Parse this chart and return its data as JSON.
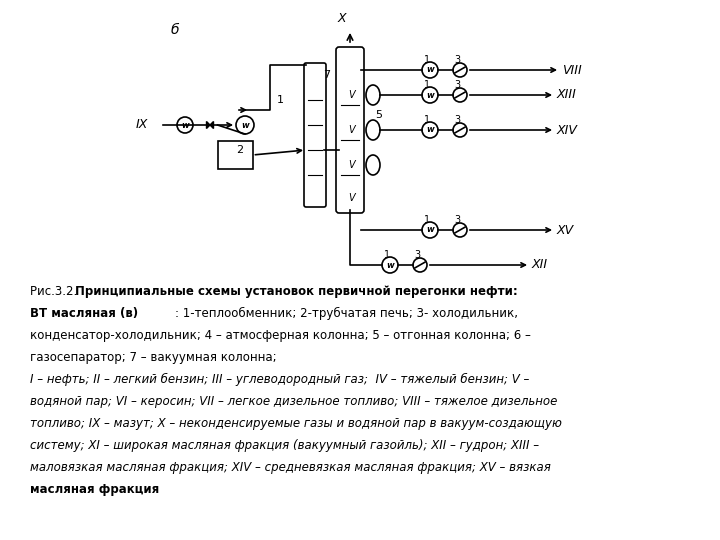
{
  "bg_color": "#ffffff",
  "line_color": "#000000",
  "diagram_label": "б",
  "caption_line1_normal": "Рис.3.2. ",
  "caption_line1_bold": "Принципиальные схемы установок первичной перегонки нефти:",
  "caption_line2_bold": "ВТ масляная (в)",
  "caption_line2_normal": ": 1-теплообменник; 2-трубчатая печь; 3- холодильник,",
  "caption_line3": "конденсатор-холодильник; 4 – атмосферная колонна; 5 – отгонная колонна; 6 –",
  "caption_line4": "газосепаратор; 7 – вакуумная колонна;",
  "caption_line5_italic": "I – нефть; II – легкий бензин; III – углеводородный газ;  IV – тяжелый бензин; V –",
  "caption_line6_italic": "водяной пар; VI – керосин; VII – легкое дизельное топливо; VIII – тяжелое дизельное",
  "caption_line7": "топливо; IX – мазут; X – неконденсируемые газы и водяной пар в вакуум-создающую",
  "caption_line8": "систему; XI – широкая масляная фракция (вакуумный газойль); XII – гудрон; XIII –",
  "caption_line9": "маловязкая масляная фракция; XIV – средневязкая масляная фракция; XV – вязкая",
  "caption_line10": "масляная фракция"
}
